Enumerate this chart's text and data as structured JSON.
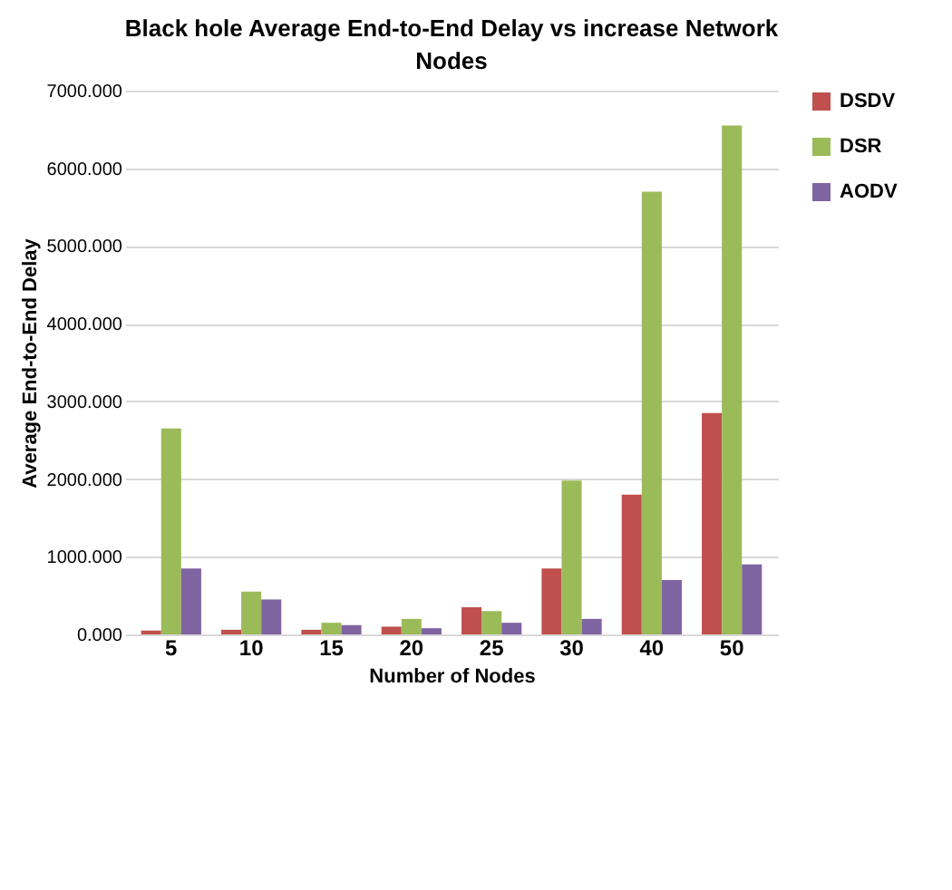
{
  "chart_data": {
    "type": "bar",
    "title": "Black hole Average End-to-End Delay vs increase Network Nodes",
    "xlabel": "Number of Nodes",
    "ylabel": "Average End-to-End Delay",
    "categories": [
      "5",
      "10",
      "15",
      "20",
      "25",
      "30",
      "40",
      "50"
    ],
    "series": [
      {
        "name": "DSDV",
        "color": "#c0504d",
        "values": [
          50,
          60,
          60,
          100,
          350,
          850,
          1800,
          2850
        ]
      },
      {
        "name": "DSR",
        "color": "#9bbb59",
        "values": [
          2650,
          550,
          150,
          200,
          300,
          1980,
          5700,
          6550
        ]
      },
      {
        "name": "AODV",
        "color": "#8064a2",
        "values": [
          850,
          450,
          120,
          80,
          150,
          200,
          700,
          900
        ]
      }
    ],
    "ylim": [
      0,
      7000
    ],
    "yticks": [
      {
        "value": 0,
        "label": "0.000"
      },
      {
        "value": 1000,
        "label": "1000.000"
      },
      {
        "value": 2000,
        "label": "2000.000"
      },
      {
        "value": 3000,
        "label": "3000.000"
      },
      {
        "value": 4000,
        "label": "4000.000"
      },
      {
        "value": 5000,
        "label": "5000.000"
      },
      {
        "value": 6000,
        "label": "6000.000"
      },
      {
        "value": 7000,
        "label": "7000.000"
      }
    ],
    "grid": "y",
    "legend": "right"
  }
}
